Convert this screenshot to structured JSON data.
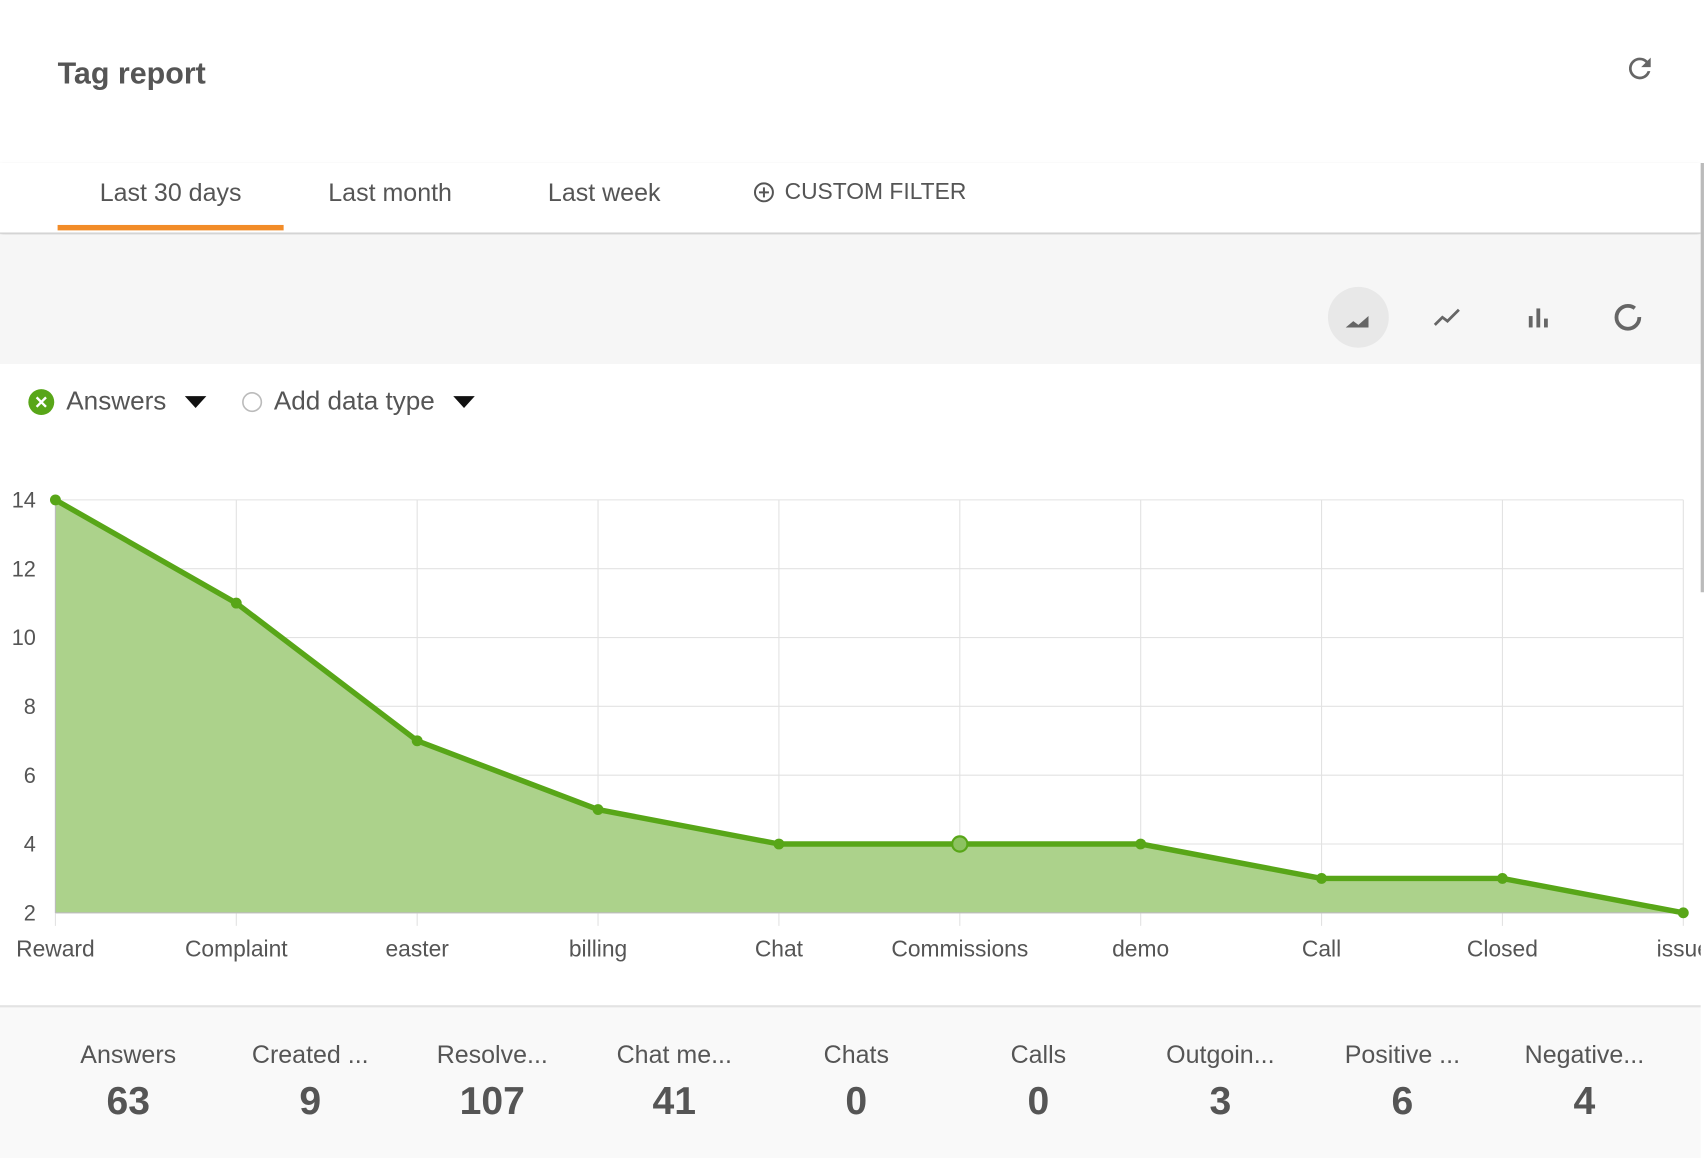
{
  "header": {
    "title": "Tag report",
    "refresh_icon": "refresh-icon"
  },
  "tabs": [
    {
      "label": "Last 30 days",
      "active": true
    },
    {
      "label": "Last month"
    },
    {
      "label": "Last week"
    }
  ],
  "custom_filter": {
    "label": "CUSTOM FILTER",
    "icon": "plus-circle-icon"
  },
  "chart_types": [
    {
      "icon": "area-chart-icon",
      "active": true
    },
    {
      "icon": "line-chart-icon"
    },
    {
      "icon": "bar-chart-icon"
    },
    {
      "icon": "donut-chart-icon"
    }
  ],
  "data_types": {
    "selected": "Answers",
    "add_label": "Add data type"
  },
  "colors": {
    "accent": "#f28c28",
    "series": "#58a618",
    "fill": "#acd28b"
  },
  "chart_data": {
    "type": "area",
    "categories": [
      "Reward",
      "Complaint",
      "easter",
      "billing",
      "Chat",
      "Commissions",
      "demo",
      "Call",
      "Closed",
      "issue"
    ],
    "series": [
      {
        "name": "Answers",
        "values": [
          14,
          11,
          7,
          5,
          4,
          4,
          4,
          3,
          3,
          2
        ]
      }
    ],
    "ylim": [
      2,
      14
    ],
    "yticks": [
      2,
      4,
      6,
      8,
      10,
      12,
      14
    ],
    "grid": true
  },
  "stats": [
    {
      "label": "Answers",
      "value": "63"
    },
    {
      "label": "Created ...",
      "value": "9"
    },
    {
      "label": "Resolve...",
      "value": "107"
    },
    {
      "label": "Chat me...",
      "value": "41"
    },
    {
      "label": "Chats",
      "value": "0"
    },
    {
      "label": "Calls",
      "value": "0"
    },
    {
      "label": "Outgoin...",
      "value": "3"
    },
    {
      "label": "Positive ...",
      "value": "6"
    },
    {
      "label": "Negative...",
      "value": "4"
    }
  ]
}
